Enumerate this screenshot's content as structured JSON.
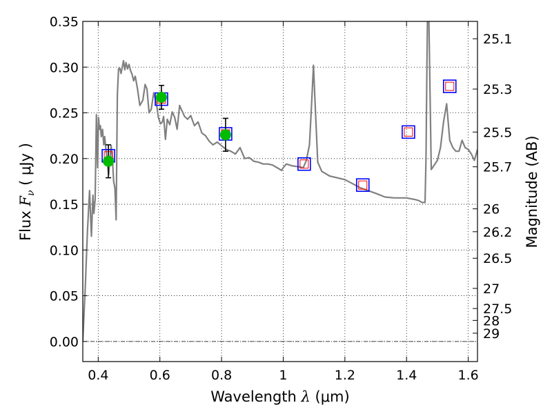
{
  "chart_data": {
    "type": "line",
    "xlabel": {
      "prefix": "Wavelength  ",
      "symbol": "λ",
      "unit": " (μm)"
    },
    "ylabel": {
      "prefix": "Flux  ",
      "symbol": "F",
      "subscript": "ν",
      "unit": "  ( μJy )"
    },
    "y2label": "Magnitude (AB)",
    "xlim": [
      0.35,
      1.63
    ],
    "ylim": [
      -0.022,
      0.35
    ],
    "grid": true,
    "x_ticks": [
      0.4,
      0.6,
      0.8,
      1.0,
      1.2,
      1.4,
      1.6
    ],
    "x_tick_labels": [
      "0.4",
      "0.6",
      "0.8",
      "1",
      "1.2",
      "1.4",
      "1.6"
    ],
    "y_ticks": [
      0.0,
      0.05,
      0.1,
      0.15,
      0.2,
      0.25,
      0.3,
      0.35
    ],
    "y_tick_labels": [
      "0.00",
      "0.05",
      "0.10",
      "0.15",
      "0.20",
      "0.25",
      "0.30",
      "0.35"
    ],
    "mag_ticks": [
      {
        "label": "25.1",
        "flux": 0.331
      },
      {
        "label": "25.3",
        "flux": 0.276
      },
      {
        "label": "25.5",
        "flux": 0.229
      },
      {
        "label": "25.7",
        "flux": 0.191
      },
      {
        "label": "26",
        "flux": 0.145
      },
      {
        "label": "26.2",
        "flux": 0.12
      },
      {
        "label": "26.5",
        "flux": 0.091
      },
      {
        "label": "27",
        "flux": 0.058
      },
      {
        "label": "27.5",
        "flux": 0.036
      },
      {
        "label": "28",
        "flux": 0.023
      },
      {
        "label": "29",
        "flux": 0.009
      }
    ],
    "colors": {
      "model": "#808080",
      "observed": "#00bb00",
      "model_box": "#0000ff",
      "model_box_inner": "#ff0000",
      "errorbar": "#000000"
    },
    "series": [
      {
        "kind": "sed_model",
        "x": [
          0.35,
          0.358,
          0.365,
          0.372,
          0.378,
          0.383,
          0.386,
          0.39,
          0.394,
          0.398,
          0.401,
          0.404,
          0.407,
          0.41,
          0.414,
          0.418,
          0.421,
          0.425,
          0.43,
          0.434,
          0.438,
          0.442,
          0.446,
          0.45,
          0.454,
          0.458,
          0.462,
          0.466,
          0.47,
          0.474,
          0.478,
          0.482,
          0.486,
          0.49,
          0.495,
          0.5,
          0.505,
          0.51,
          0.515,
          0.52,
          0.527,
          0.535,
          0.545,
          0.552,
          0.558,
          0.565,
          0.572,
          0.58,
          0.588,
          0.595,
          0.602,
          0.608,
          0.612,
          0.618,
          0.624,
          0.632,
          0.64,
          0.648,
          0.656,
          0.664,
          0.672,
          0.68,
          0.69,
          0.7,
          0.712,
          0.724,
          0.736,
          0.748,
          0.76,
          0.772,
          0.786,
          0.8,
          0.815,
          0.83,
          0.845,
          0.86,
          0.875,
          0.89,
          0.905,
          0.92,
          0.935,
          0.95,
          0.965,
          0.98,
          0.995,
          1.0,
          1.01,
          1.03,
          1.05,
          1.065,
          1.075,
          1.085,
          1.092,
          1.098,
          1.105,
          1.112,
          1.125,
          1.15,
          1.2,
          1.25,
          1.3,
          1.33,
          1.36,
          1.4,
          1.43,
          1.44,
          1.45,
          1.455,
          1.46,
          1.463,
          1.466,
          1.468,
          1.472,
          1.48,
          1.5,
          1.51,
          1.52,
          1.53,
          1.54,
          1.55,
          1.56,
          1.57,
          1.58,
          1.59,
          1.6,
          1.61,
          1.62,
          1.63
        ],
        "y": [
          0.0,
          0.06,
          0.12,
          0.165,
          0.115,
          0.16,
          0.14,
          0.155,
          0.248,
          0.19,
          0.245,
          0.232,
          0.236,
          0.224,
          0.232,
          0.215,
          0.224,
          0.21,
          0.195,
          0.182,
          0.2,
          0.214,
          0.2,
          0.175,
          0.168,
          0.133,
          0.27,
          0.298,
          0.299,
          0.293,
          0.3,
          0.307,
          0.297,
          0.305,
          0.298,
          0.303,
          0.296,
          0.292,
          0.285,
          0.29,
          0.277,
          0.258,
          0.264,
          0.281,
          0.276,
          0.25,
          0.254,
          0.272,
          0.262,
          0.245,
          0.238,
          0.24,
          0.246,
          0.221,
          0.243,
          0.237,
          0.251,
          0.245,
          0.232,
          0.258,
          0.252,
          0.246,
          0.243,
          0.247,
          0.236,
          0.24,
          0.228,
          0.225,
          0.219,
          0.215,
          0.218,
          0.214,
          0.21,
          0.208,
          0.205,
          0.212,
          0.2,
          0.201,
          0.197,
          0.196,
          0.194,
          0.194,
          0.193,
          0.19,
          0.187,
          0.19,
          0.194,
          0.192,
          0.191,
          0.19,
          0.198,
          0.215,
          0.26,
          0.302,
          0.248,
          0.196,
          0.186,
          0.181,
          0.177,
          0.168,
          0.162,
          0.158,
          0.157,
          0.157,
          0.155,
          0.154,
          0.152,
          0.152,
          0.152,
          0.2,
          0.3,
          0.36,
          0.36,
          0.188,
          0.198,
          0.212,
          0.24,
          0.26,
          0.22,
          0.212,
          0.208,
          0.208,
          0.22,
          0.212,
          0.21,
          0.205,
          0.198,
          0.21
        ]
      },
      {
        "kind": "observed_points",
        "name": "",
        "x": [
          0.433,
          0.605,
          0.813
        ],
        "y": [
          0.197,
          0.267,
          0.226
        ],
        "yerr": [
          0.018,
          0.013,
          0.018
        ]
      },
      {
        "kind": "model_photometry",
        "name": "",
        "x": [
          0.433,
          0.605,
          0.813,
          1.068,
          1.258,
          1.406,
          1.54
        ],
        "y": [
          0.203,
          0.265,
          0.227,
          0.194,
          0.171,
          0.229,
          0.279
        ]
      }
    ]
  }
}
